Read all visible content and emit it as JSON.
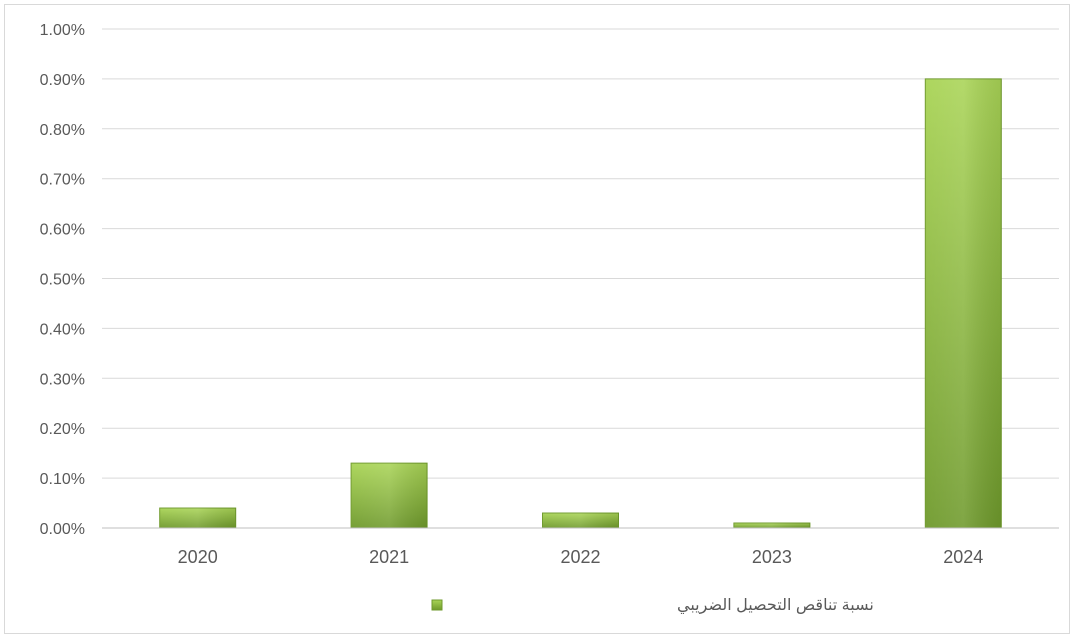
{
  "chart_data": {
    "type": "bar",
    "categories": [
      "2020",
      "2021",
      "2022",
      "2023",
      "2024"
    ],
    "series": [
      {
        "name": "نسبة تناقص التحصيل الضريبي",
        "values": [
          0.04,
          0.13,
          0.03,
          0.01,
          0.9
        ],
        "color": "#8dbf3a"
      }
    ],
    "y_unit": "%",
    "ylim": [
      0,
      1.0
    ],
    "yticks": [
      "0.00%",
      "0.10%",
      "0.20%",
      "0.30%",
      "0.40%",
      "0.50%",
      "0.60%",
      "0.70%",
      "0.80%",
      "0.90%",
      "1.00%"
    ],
    "grid": true,
    "legend_position": "bottom",
    "title": "",
    "xlabel": "",
    "ylabel": ""
  },
  "colors": {
    "gridline": "#d9d9d9",
    "axis": "#bfbfbf",
    "bar_light": "#a6d153",
    "bar_dark": "#6f9a2c"
  }
}
